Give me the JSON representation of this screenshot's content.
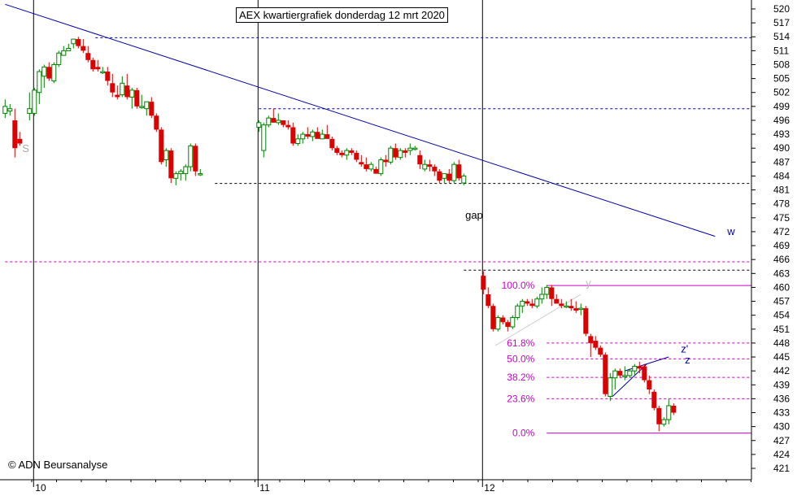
{
  "chart_data": {
    "type": "candlestick",
    "title": "AEX kwartiergrafiek donderdag 12 mrt 2020",
    "copyright": "© ADN Beursanalyse",
    "y_ticks": [
      421,
      424,
      427,
      430,
      433,
      436,
      439,
      442,
      445,
      448,
      451,
      454,
      457,
      460,
      463,
      466,
      469,
      472,
      475,
      478,
      481,
      484,
      487,
      490,
      493,
      496,
      499,
      502,
      505,
      508,
      511,
      514,
      517,
      520
    ],
    "ylim": [
      420.5,
      521.5
    ],
    "x_day_labels": [
      "10",
      "11",
      "12"
    ],
    "x_range": [
      0,
      155
    ],
    "day_boundaries": [
      6,
      52,
      98
    ],
    "hlines": [
      {
        "y": 513.8,
        "x0": 18.5,
        "x1": 155,
        "color": "#0000aa",
        "dash": true
      },
      {
        "y": 498.5,
        "x0": 52,
        "x1": 155,
        "color": "#0000aa",
        "dash": true
      },
      {
        "y": 482.4,
        "x0": 43,
        "x1": 155,
        "color": "#000000",
        "dash": true
      },
      {
        "y": 465.5,
        "x0": 0,
        "x1": 155,
        "color": "#cc00cc",
        "dash": true
      },
      {
        "y": 463.7,
        "x0": 94,
        "x1": 155,
        "color": "#000000",
        "dash": true
      }
    ],
    "trendline": {
      "x0": 0,
      "y0": 521,
      "x1": 145.5,
      "y1": 471,
      "color": "#0000aa"
    },
    "fib_levels": [
      {
        "label": "100.0%",
        "value": 460.4
      },
      {
        "label": "61.8%",
        "value": 448.0
      },
      {
        "label": "50.0%",
        "value": 444.6
      },
      {
        "label": "38.2%",
        "value": 440.6
      },
      {
        "label": "23.6%",
        "value": 436.0
      },
      {
        "label": "0.0%",
        "value": 428.6
      }
    ],
    "labels": [
      {
        "text": "S",
        "x": 3.5,
        "y": 489.2,
        "color": "#aaaaaa"
      },
      {
        "text": "gap",
        "x": 94.3,
        "y": 474.8,
        "color": "#000000"
      },
      {
        "text": "w",
        "x": 148,
        "y": 471.3,
        "color": "#0000aa"
      },
      {
        "text": "y",
        "x": 119,
        "y": 460.2,
        "color": "#bbbbbb"
      },
      {
        "text": "z'",
        "x": 138.5,
        "y": 446,
        "color": "#0000aa"
      },
      {
        "text": "z",
        "x": 139.3,
        "y": 443.6,
        "color": "#0000aa"
      }
    ],
    "candles": [
      [
        0,
        497.5,
        500.5,
        496.5,
        499.0
      ],
      [
        1,
        498.0,
        499.5,
        497.0,
        498.5
      ],
      [
        2,
        496.0,
        498.5,
        488.0,
        490.0
      ],
      [
        3,
        492.0,
        493.5,
        490.5,
        491.0
      ],
      [
        5,
        497.5,
        502.0,
        496.0,
        498.5
      ],
      [
        6,
        497.5,
        503.0,
        497.0,
        502.5
      ],
      [
        7,
        502.0,
        507.0,
        499.5,
        506.5
      ],
      [
        8,
        505.5,
        508.0,
        503.0,
        507.5
      ],
      [
        9,
        507.5,
        508.5,
        504.5,
        505.0
      ],
      [
        10,
        504.5,
        508.5,
        504.0,
        508.0
      ],
      [
        11,
        508.0,
        511.0,
        507.5,
        510.5
      ],
      [
        12,
        510.0,
        512.0,
        510.0,
        511.0
      ],
      [
        13,
        511.0,
        512.5,
        511.0,
        511.5
      ],
      [
        14,
        512.5,
        513.5,
        511.5,
        513.5
      ],
      [
        15,
        513.5,
        514.0,
        511.5,
        512.0
      ],
      [
        16,
        512.0,
        513.5,
        510.5,
        511.0
      ],
      [
        17,
        510.5,
        512.0,
        508.5,
        509.0
      ],
      [
        18,
        509.0,
        509.5,
        506.5,
        507.0
      ],
      [
        19,
        507.5,
        509.0,
        506.5,
        507.0
      ],
      [
        20,
        506.5,
        507.5,
        506.0,
        506.5
      ],
      [
        21,
        506.5,
        507.5,
        503.5,
        504.5
      ],
      [
        22,
        504.0,
        506.0,
        501.0,
        502.0
      ],
      [
        23,
        501.5,
        503.5,
        500.5,
        501.0
      ],
      [
        24,
        501.5,
        505.5,
        501.0,
        504.0
      ],
      [
        25,
        503.5,
        506.0,
        500.5,
        501.0
      ],
      [
        26,
        501.0,
        503.0,
        498.5,
        502.5
      ],
      [
        27,
        502.5,
        503.0,
        498.5,
        499.0
      ],
      [
        28,
        499.0,
        501.5,
        498.5,
        499.0
      ],
      [
        29,
        498.5,
        500.0,
        497.0,
        500.0
      ],
      [
        30,
        500.0,
        501.0,
        496.5,
        497.0
      ],
      [
        31,
        497.0,
        497.5,
        493.5,
        494.0
      ],
      [
        32,
        494.0,
        494.5,
        486.5,
        487.0
      ],
      [
        33,
        487.5,
        490.0,
        486.0,
        489.5
      ],
      [
        34,
        489.5,
        490.0,
        482.5,
        483.5
      ],
      [
        35,
        483.5,
        485.0,
        482.0,
        484.5
      ],
      [
        36,
        484.5,
        485.5,
        483.0,
        485.0
      ],
      [
        37,
        484.5,
        486.5,
        483.0,
        486.0
      ],
      [
        38,
        486.0,
        491.0,
        485.0,
        490.5
      ],
      [
        39,
        490.5,
        491.0,
        484.0,
        485.0
      ],
      [
        40,
        484.5,
        485.5,
        484.0,
        484.5
      ],
      [
        52,
        494.5,
        496.0,
        493.5,
        495.5
      ],
      [
        53,
        489.5,
        495.5,
        488.0,
        495.0
      ],
      [
        54,
        495.0,
        497.0,
        494.5,
        496.5
      ],
      [
        55,
        496.5,
        498.5,
        495.5,
        495.5
      ],
      [
        56,
        495.5,
        497.5,
        495.0,
        496.0
      ],
      [
        57,
        496.0,
        496.0,
        494.5,
        495.0
      ],
      [
        58,
        495.0,
        496.0,
        494.0,
        494.5
      ],
      [
        59,
        494.5,
        495.5,
        490.5,
        491.0
      ],
      [
        60,
        491.0,
        493.0,
        490.5,
        492.0
      ],
      [
        61,
        492.0,
        493.5,
        491.0,
        493.0
      ],
      [
        62,
        493.0,
        494.5,
        492.0,
        492.5
      ],
      [
        63,
        492.5,
        494.0,
        491.5,
        493.5
      ],
      [
        64,
        493.5,
        494.5,
        492.5,
        492.0
      ],
      [
        65,
        492.0,
        494.0,
        492.0,
        493.0
      ],
      [
        66,
        493.0,
        495.0,
        492.0,
        492.0
      ],
      [
        67,
        492.0,
        492.5,
        489.5,
        490.0
      ],
      [
        68,
        490.0,
        490.5,
        488.5,
        489.0
      ],
      [
        69,
        489.0,
        489.5,
        488.0,
        488.5
      ],
      [
        70,
        488.5,
        490.0,
        487.5,
        489.5
      ],
      [
        71,
        489.5,
        490.0,
        488.5,
        489.0
      ],
      [
        72,
        489.0,
        489.5,
        487.0,
        487.5
      ],
      [
        73,
        487.0,
        488.5,
        486.0,
        486.5
      ],
      [
        74,
        486.5,
        488.0,
        485.0,
        485.5
      ],
      [
        75,
        485.5,
        487.0,
        485.0,
        486.5
      ],
      [
        76,
        485.5,
        486.0,
        484.5,
        484.5
      ],
      [
        77,
        484.5,
        488.0,
        484.0,
        487.5
      ],
      [
        78,
        487.5,
        488.5,
        486.0,
        487.0
      ],
      [
        79,
        487.0,
        490.5,
        486.5,
        490.0
      ],
      [
        80,
        490.0,
        491.0,
        487.5,
        488.0
      ],
      [
        81,
        488.0,
        490.0,
        487.5,
        489.5
      ],
      [
        82,
        489.5,
        490.0,
        488.0,
        489.0
      ],
      [
        83,
        489.5,
        491.0,
        488.5,
        490.0
      ],
      [
        84,
        490.0,
        490.5,
        489.5,
        490.0
      ],
      [
        85,
        488.5,
        489.5,
        485.5,
        486.5
      ],
      [
        86,
        485.5,
        487.5,
        485.0,
        486.5
      ],
      [
        87,
        486.5,
        487.5,
        485.0,
        486.0
      ],
      [
        88,
        486.0,
        486.5,
        484.0,
        485.0
      ],
      [
        89,
        485.0,
        485.5,
        482.5,
        483.0
      ],
      [
        90,
        483.5,
        484.5,
        482.5,
        484.5
      ],
      [
        91,
        484.5,
        485.5,
        482.5,
        483.0
      ],
      [
        92,
        483.0,
        487.0,
        482.5,
        486.5
      ],
      [
        93,
        486.5,
        487.5,
        483.0,
        483.5
      ],
      [
        94,
        482.5,
        484.5,
        482.0,
        484.0
      ],
      [
        98,
        462.5,
        463.5,
        458.5,
        459.5
      ],
      [
        99,
        458.5,
        460.0,
        455.5,
        456.0
      ],
      [
        100,
        456.0,
        456.5,
        450.5,
        451.0
      ],
      [
        101,
        451.0,
        454.0,
        450.5,
        453.5
      ],
      [
        102,
        453.5,
        454.0,
        452.0,
        452.5
      ],
      [
        103,
        452.5,
        453.0,
        450.5,
        451.5
      ],
      [
        104,
        451.5,
        454.0,
        451.0,
        453.5
      ],
      [
        105,
        453.5,
        456.5,
        453.0,
        456.0
      ],
      [
        106,
        456.0,
        457.5,
        454.5,
        457.0
      ],
      [
        107,
        457.0,
        457.5,
        456.0,
        456.5
      ],
      [
        108,
        456.5,
        457.5,
        455.5,
        456.0
      ],
      [
        109,
        456.0,
        458.0,
        455.5,
        457.5
      ],
      [
        110,
        457.5,
        460.0,
        456.5,
        458.5
      ],
      [
        111,
        458.5,
        460.5,
        457.5,
        460.0
      ],
      [
        112,
        460.0,
        460.5,
        456.0,
        457.5
      ],
      [
        113,
        457.5,
        458.5,
        456.5,
        456.5
      ],
      [
        114,
        456.5,
        457.5,
        455.5,
        456.0
      ],
      [
        115,
        456.0,
        457.0,
        455.5,
        456.0
      ],
      [
        116,
        456.0,
        457.5,
        455.0,
        455.5
      ],
      [
        117,
        455.5,
        457.0,
        454.5,
        455.0
      ],
      [
        118,
        455.5,
        456.5,
        454.0,
        455.5
      ],
      [
        119,
        455.5,
        456.0,
        449.5,
        450.0
      ],
      [
        120,
        449.5,
        450.0,
        445.0,
        448.0
      ],
      [
        121,
        448.5,
        449.5,
        446.5,
        447.0
      ],
      [
        122,
        447.0,
        447.5,
        445.0,
        445.5
      ],
      [
        123,
        445.5,
        446.0,
        436.5,
        437.0
      ],
      [
        124,
        436.5,
        441.5,
        435.5,
        440.5
      ],
      [
        125,
        440.5,
        442.5,
        438.0,
        442.0
      ],
      [
        126,
        442.0,
        442.5,
        440.5,
        441.0
      ],
      [
        127,
        441.0,
        443.0,
        440.0,
        441.0
      ],
      [
        128,
        441.0,
        442.5,
        440.5,
        442.0
      ],
      [
        129,
        442.0,
        443.5,
        441.0,
        443.0
      ],
      [
        130,
        443.0,
        444.0,
        441.5,
        442.5
      ],
      [
        131,
        443.0,
        443.5,
        439.5,
        440.0
      ],
      [
        132,
        440.0,
        441.0,
        437.0,
        438.0
      ],
      [
        133,
        437.5,
        438.0,
        433.5,
        434.0
      ],
      [
        134,
        434.0,
        434.5,
        429.0,
        430.5
      ],
      [
        135,
        430.5,
        432.0,
        430.0,
        431.5
      ],
      [
        136,
        431.5,
        436.0,
        430.5,
        434.5
      ],
      [
        137,
        434.5,
        435.0,
        432.5,
        433.0
      ]
    ]
  }
}
